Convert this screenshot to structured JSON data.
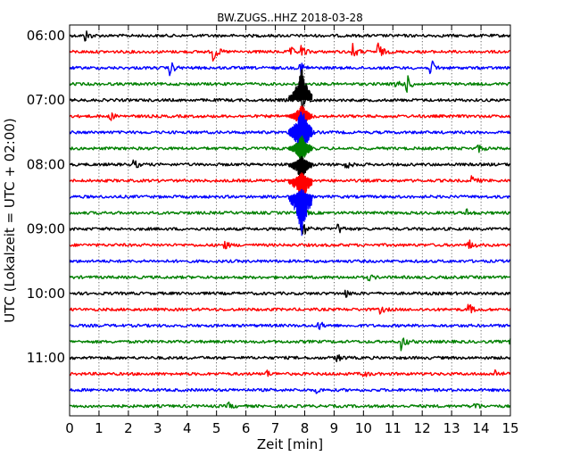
{
  "chart_data": {
    "type": "line",
    "title": "BW.ZUGS..HHZ 2018-03-28",
    "xlabel": "Zeit  [min]",
    "ylabel": "UTC (Lokalzeit = UTC + 02:00)",
    "xlim": [
      0,
      15
    ],
    "xticks": [
      "0",
      "1",
      "2",
      "3",
      "4",
      "5",
      "6",
      "7",
      "8",
      "9",
      "10",
      "11",
      "12",
      "13",
      "14",
      "15"
    ],
    "yticks": [
      "06:00",
      "07:00",
      "08:00",
      "09:00",
      "10:00",
      "11:00"
    ],
    "grid": "vertical dotted",
    "trace_interval_min": 15,
    "trace_colors": [
      "#000000",
      "#ff0000",
      "#0000ff",
      "#008000"
    ],
    "traces": [
      {
        "start": "06:00",
        "color": "#000000",
        "events": [
          {
            "t": 0.55,
            "amp": 0.7
          }
        ]
      },
      {
        "start": "06:15",
        "color": "#ff0000",
        "events": [
          {
            "t": 4.9,
            "amp": 1.2
          },
          {
            "t": 7.5,
            "amp": 0.6
          },
          {
            "t": 7.9,
            "amp": 0.7
          },
          {
            "t": 9.65,
            "amp": 0.9
          },
          {
            "t": 10.5,
            "amp": 1.1
          }
        ]
      },
      {
        "start": "06:30",
        "color": "#0000ff",
        "events": [
          {
            "t": 3.4,
            "amp": 1.0
          },
          {
            "t": 7.85,
            "amp": 0.9
          },
          {
            "t": 12.3,
            "amp": 1.0
          }
        ]
      },
      {
        "start": "06:45",
        "color": "#008000",
        "events": [
          {
            "t": 11.1,
            "amp": 0.8
          },
          {
            "t": 11.5,
            "amp": 0.9
          }
        ]
      },
      {
        "start": "07:00",
        "color": "#000000",
        "events": [
          {
            "t": 7.9,
            "amp": 1.4
          }
        ]
      },
      {
        "start": "07:15",
        "color": "#ff0000",
        "events": [
          {
            "t": 1.4,
            "amp": 0.4
          },
          {
            "t": 7.9,
            "amp": 1.3
          }
        ]
      },
      {
        "start": "07:30",
        "color": "#0000ff",
        "events": [
          {
            "t": 7.9,
            "amp": 2.4
          }
        ]
      },
      {
        "start": "07:45",
        "color": "#008000",
        "events": [
          {
            "t": 7.9,
            "amp": 1.6
          },
          {
            "t": 13.9,
            "amp": 0.5
          }
        ]
      },
      {
        "start": "08:00",
        "color": "#000000",
        "events": [
          {
            "t": 2.2,
            "amp": 0.5
          },
          {
            "t": 7.9,
            "amp": 1.2
          },
          {
            "t": 9.4,
            "amp": 0.6
          }
        ]
      },
      {
        "start": "08:15",
        "color": "#ff0000",
        "events": [
          {
            "t": 7.9,
            "amp": 1.0
          },
          {
            "t": 13.7,
            "amp": 0.5
          }
        ]
      },
      {
        "start": "08:30",
        "color": "#0000ff",
        "events": [
          {
            "t": 7.9,
            "amp": 1.0
          }
        ]
      },
      {
        "start": "08:45",
        "color": "#008000",
        "events": [
          {
            "t": 7.9,
            "amp": 0.8
          },
          {
            "t": 13.5,
            "amp": 0.5
          }
        ]
      },
      {
        "start": "09:00",
        "color": "#000000",
        "events": [
          {
            "t": 7.95,
            "amp": 1.0
          },
          {
            "t": 9.15,
            "amp": 0.6
          }
        ]
      },
      {
        "start": "09:15",
        "color": "#ff0000",
        "events": [
          {
            "t": 5.3,
            "amp": 0.4
          },
          {
            "t": 13.6,
            "amp": 0.6
          }
        ]
      },
      {
        "start": "09:30",
        "color": "#0000ff",
        "events": []
      },
      {
        "start": "09:45",
        "color": "#008000",
        "events": [
          {
            "t": 10.2,
            "amp": 0.3
          }
        ]
      },
      {
        "start": "10:00",
        "color": "#000000",
        "events": [
          {
            "t": 9.4,
            "amp": 0.4
          }
        ]
      },
      {
        "start": "10:15",
        "color": "#ff0000",
        "events": [
          {
            "t": 10.6,
            "amp": 0.4
          },
          {
            "t": 13.6,
            "amp": 0.6
          }
        ]
      },
      {
        "start": "10:30",
        "color": "#0000ff",
        "events": [
          {
            "t": 8.5,
            "amp": 0.5
          }
        ]
      },
      {
        "start": "10:45",
        "color": "#008000",
        "events": [
          {
            "t": 11.3,
            "amp": 1.0
          },
          {
            "t": 15.0,
            "amp": 0.4
          }
        ]
      },
      {
        "start": "11:00",
        "color": "#000000",
        "events": [
          {
            "t": 9.1,
            "amp": 0.5
          }
        ]
      },
      {
        "start": "11:15",
        "color": "#ff0000",
        "events": [
          {
            "t": 6.7,
            "amp": 0.4
          },
          {
            "t": 10.0,
            "amp": 0.4
          },
          {
            "t": 14.5,
            "amp": 0.5
          }
        ]
      },
      {
        "start": "11:30",
        "color": "#0000ff",
        "events": [
          {
            "t": 8.4,
            "amp": 0.3
          }
        ]
      },
      {
        "start": "11:45",
        "color": "#008000",
        "events": [
          {
            "t": 5.4,
            "amp": 0.4
          },
          {
            "t": 13.8,
            "amp": 0.5
          }
        ]
      }
    ]
  }
}
